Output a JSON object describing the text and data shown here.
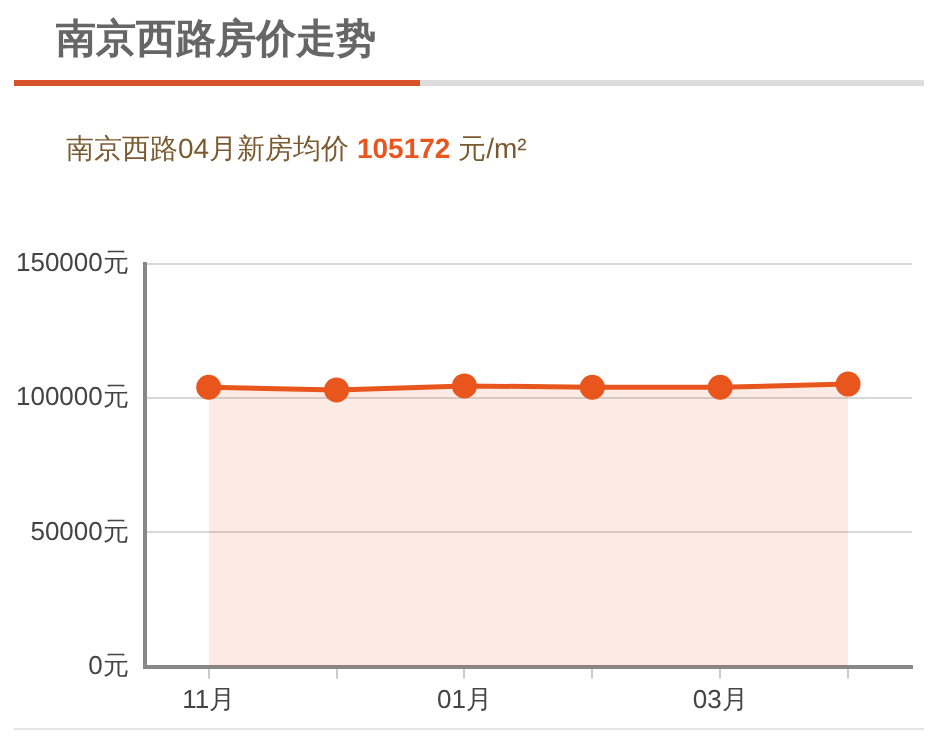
{
  "chart_data": {
    "type": "area",
    "title": "南京西路房价走势",
    "subtitle": "南京西路04月新房均价 105172 元/m²",
    "categories": [
      "11月",
      null,
      "01月",
      null,
      "03月",
      null
    ],
    "series": [
      {
        "color": "#e8561e",
        "values": [
          104000,
          103000,
          104500,
          104000,
          104000,
          105172
        ]
      }
    ],
    "ylim": [
      0,
      150000
    ],
    "yticks": [
      {
        "value": 0,
        "label": "0元"
      },
      {
        "value": 50000,
        "label": "50000元"
      },
      {
        "value": 100000,
        "label": "100000元"
      },
      {
        "value": 150000,
        "label": "150000元"
      }
    ],
    "grid": "y",
    "legend": false,
    "marker": "circle"
  }
}
